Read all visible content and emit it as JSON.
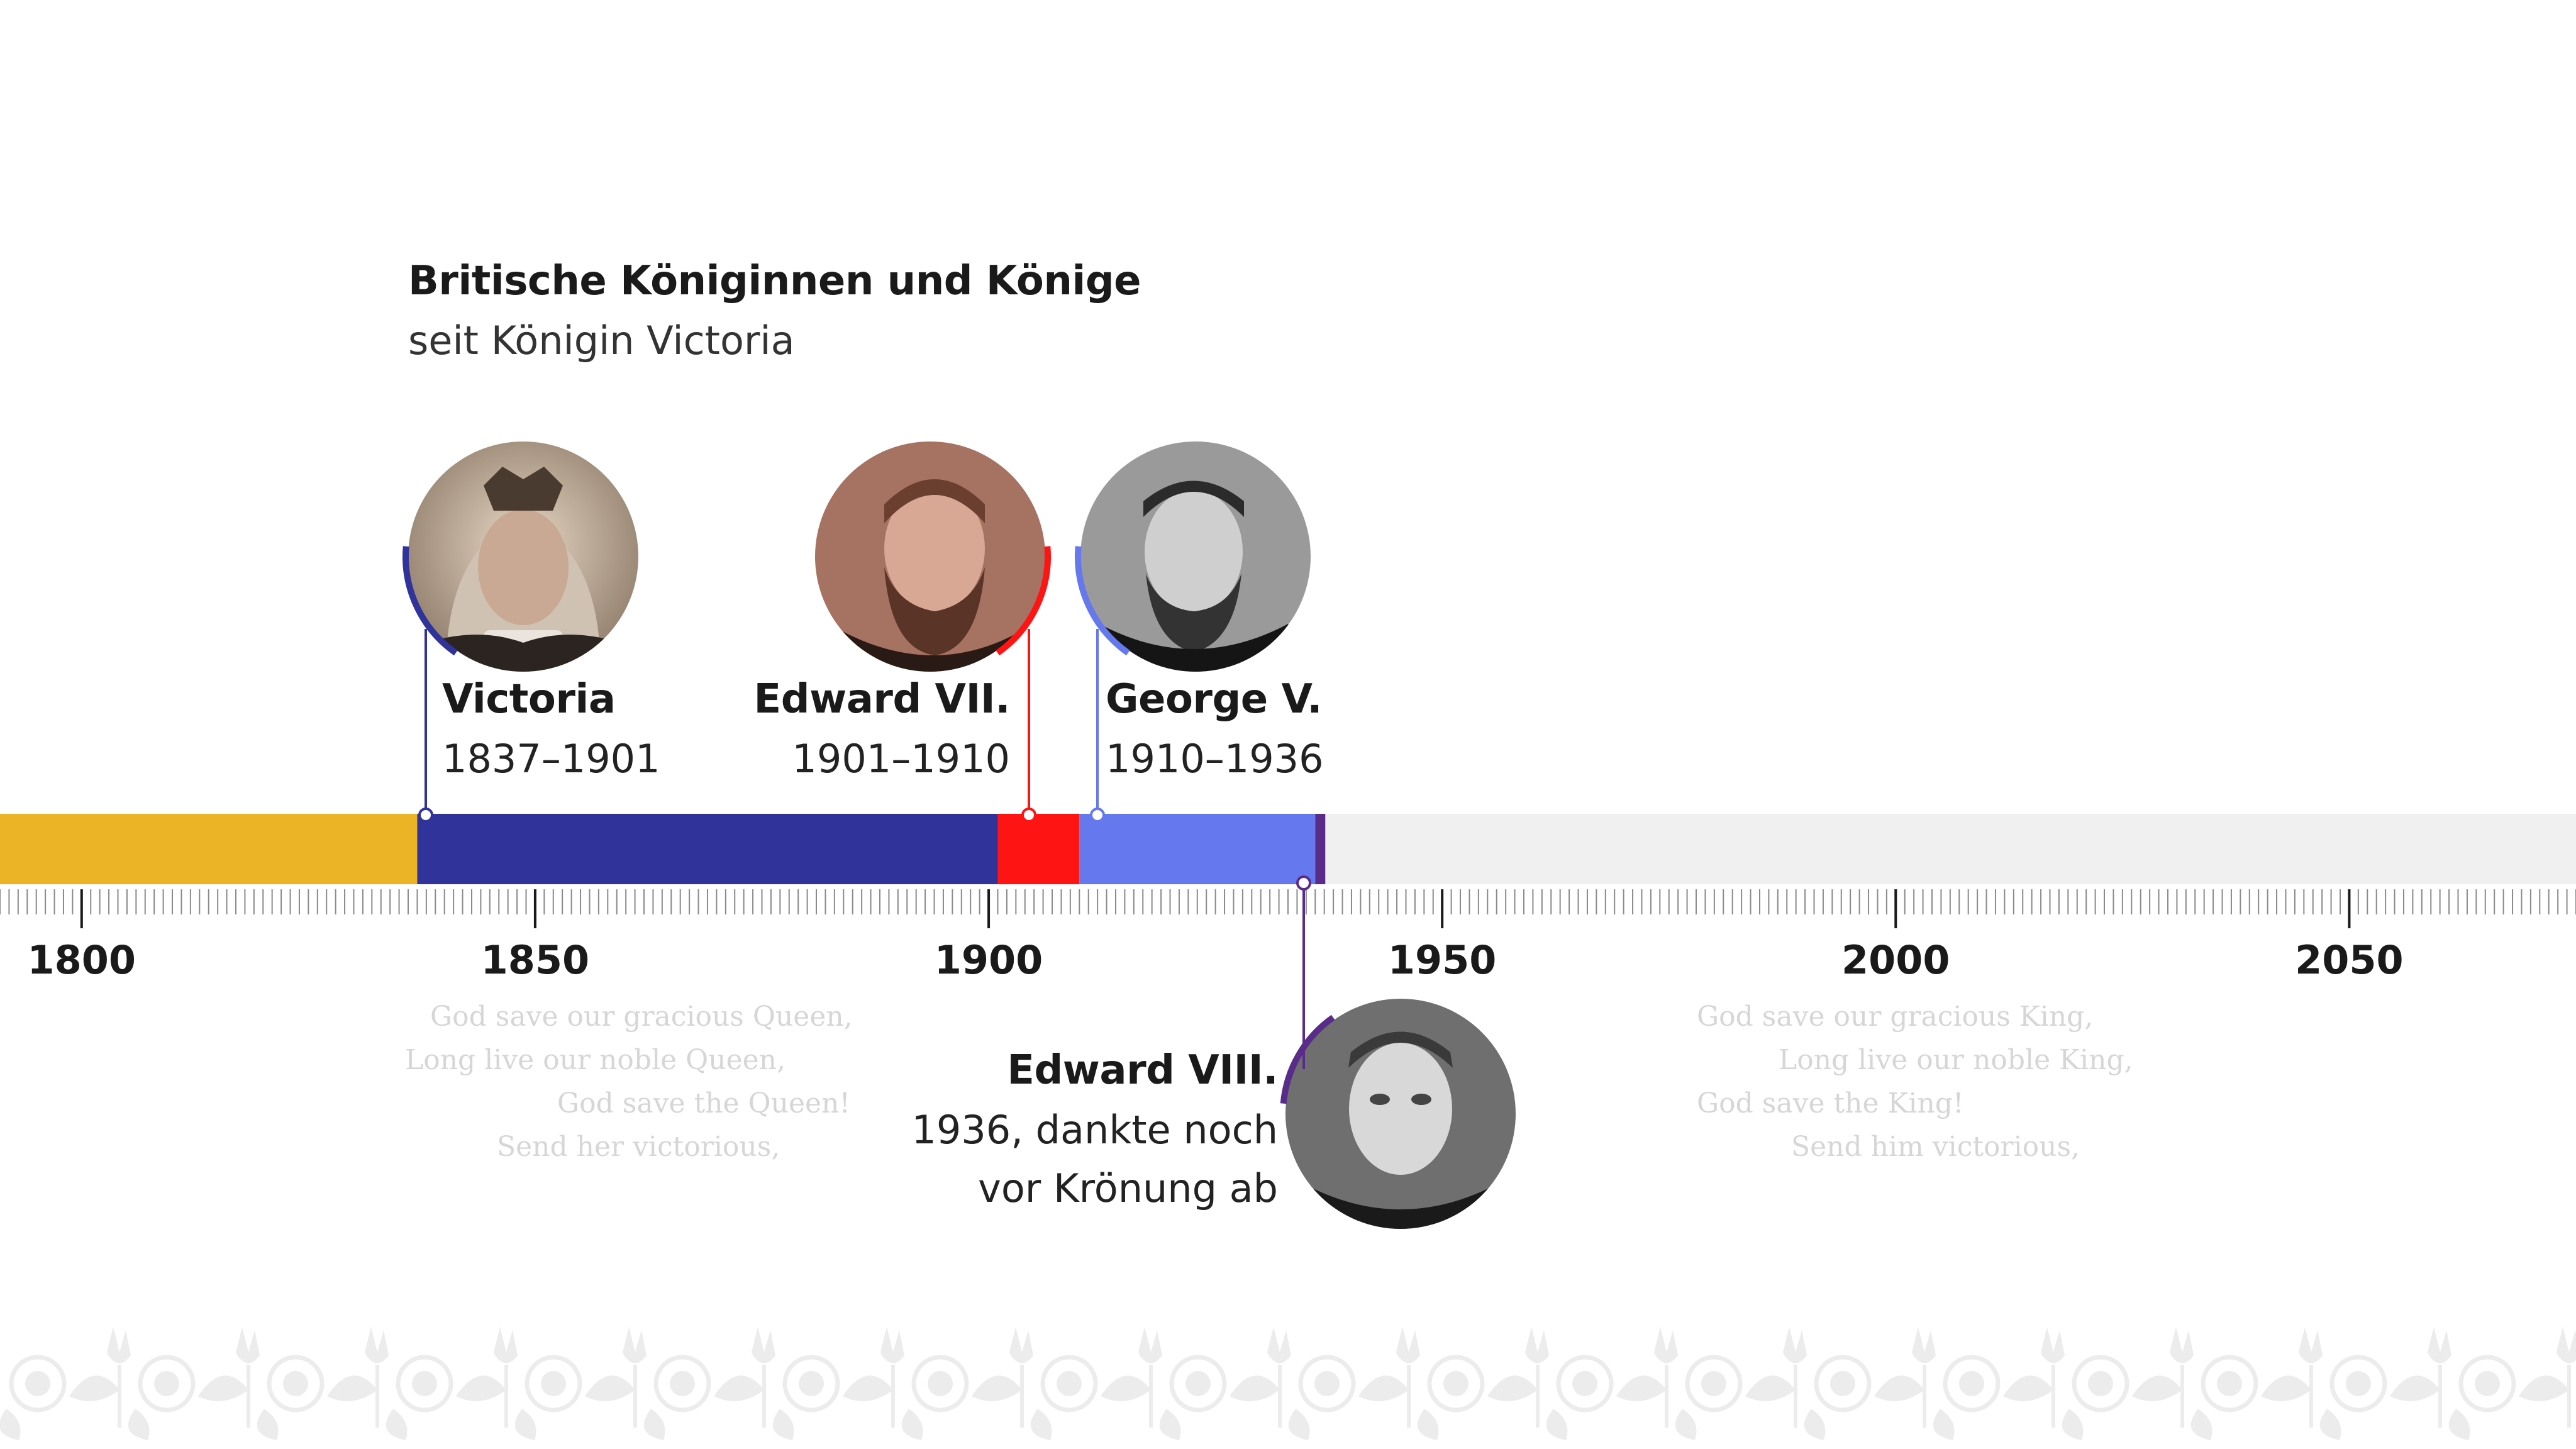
{
  "header": {
    "title": "Britische Königinnen und Könige",
    "subtitle": "seit Königin Victoria"
  },
  "monarchs": [
    {
      "name": "Victoria",
      "years": "1837–1901",
      "start": 1837,
      "end": 1901,
      "color": "#303399"
    },
    {
      "name": "Edward VII.",
      "years": "1901–1910",
      "start": 1901,
      "end": 1910,
      "color": "#ff1414"
    },
    {
      "name": "George V.",
      "years": "1910–1936",
      "start": 1910,
      "end": 1936,
      "color": "#6678ee"
    },
    {
      "name": "Edward VIII.",
      "years_line1": "1936, dankte noch",
      "years_line2": "vor Krönung ab",
      "start": 1936,
      "end": 1936,
      "color": "#5a2c8a"
    }
  ],
  "timeline": {
    "pre_period": {
      "start": 1791,
      "end": 1837,
      "color": "#ebb427"
    },
    "future_color": "#f0f0f0",
    "axis_start": 1791,
    "axis_end": 2075,
    "year_labels": [
      "1800",
      "1850",
      "1900",
      "1950",
      "2000",
      "2050"
    ]
  },
  "anthem_queen": [
    "God save our gracious Queen,",
    "Long live our noble Queen,",
    "God save the Queen!",
    "Send her victorious,"
  ],
  "anthem_king": [
    "God save our gracious King,",
    "Long live our noble King,",
    "God save the King!",
    "Send him victorious,"
  ],
  "icons": {
    "portrait_victoria": "portrait-victoria-icon",
    "portrait_edward7": "portrait-edward7-icon",
    "portrait_george5": "portrait-george5-icon",
    "portrait_edward8": "portrait-edward8-icon",
    "ornament": "floral-ornament-icon"
  }
}
